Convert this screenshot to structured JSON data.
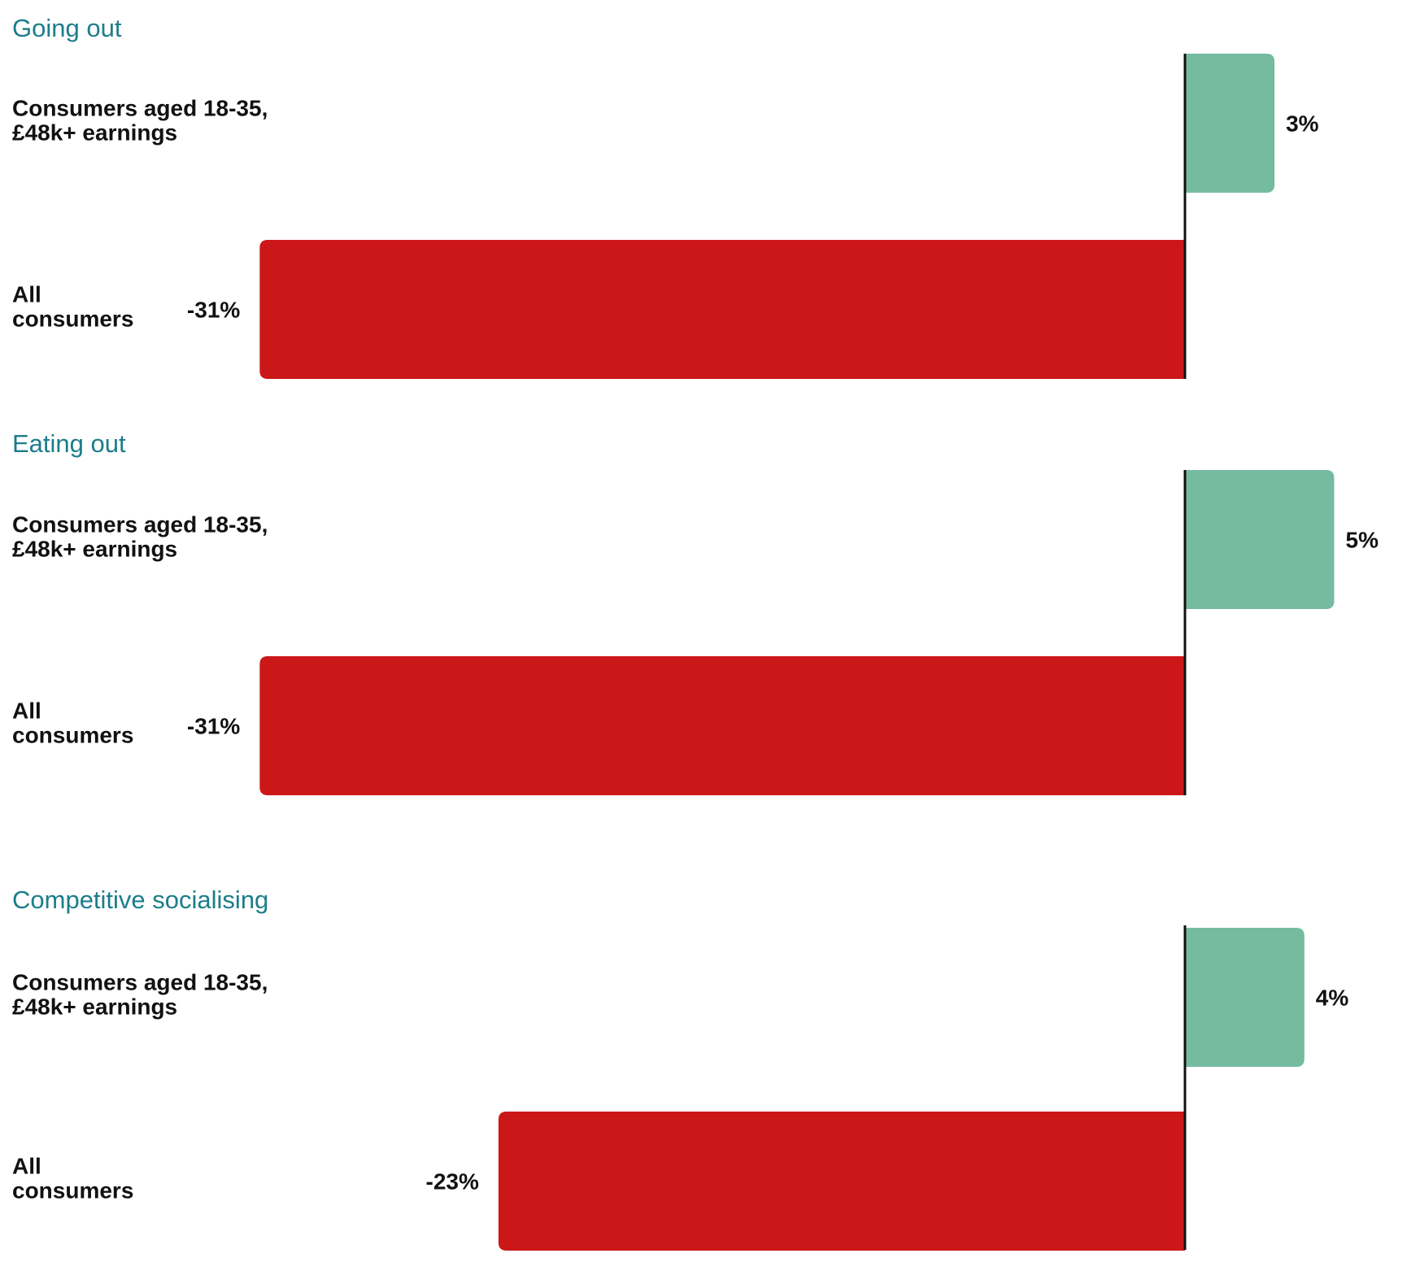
{
  "chart_data": {
    "type": "bar",
    "orientation": "horizontal",
    "xlim": [
      -31,
      5
    ],
    "colors": {
      "positive": "#74bba0",
      "negative": "#cc1719",
      "title": "#1c7d8a",
      "axis": "#111111"
    },
    "panels": [
      {
        "title": "Going out",
        "bars": [
          {
            "label_lines": [
              "Consumers aged 18-35,",
              "£48k+ earnings"
            ],
            "value": 3,
            "value_label": "3%"
          },
          {
            "label_lines": [
              "All",
              "consumers"
            ],
            "value": -31,
            "value_label": "-31%"
          }
        ]
      },
      {
        "title": "Eating out",
        "bars": [
          {
            "label_lines": [
              "Consumers aged 18-35,",
              "£48k+ earnings"
            ],
            "value": 5,
            "value_label": "5%"
          },
          {
            "label_lines": [
              "All",
              "consumers"
            ],
            "value": -31,
            "value_label": "-31%"
          }
        ]
      },
      {
        "title": "Competitive socialising",
        "bars": [
          {
            "label_lines": [
              "Consumers aged 18-35,",
              "£48k+ earnings"
            ],
            "value": 4,
            "value_label": "4%"
          },
          {
            "label_lines": [
              "All",
              "consumers"
            ],
            "value": -23,
            "value_label": "-23%"
          }
        ]
      }
    ]
  }
}
